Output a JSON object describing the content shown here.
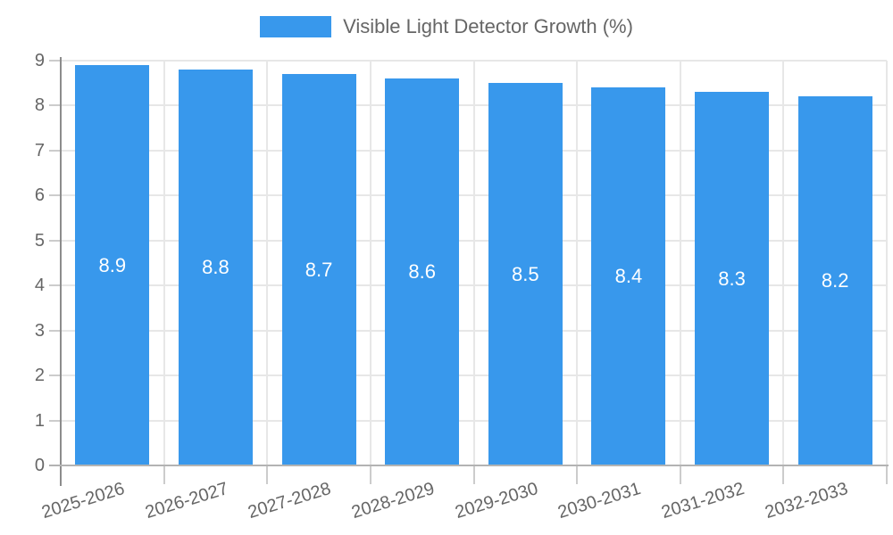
{
  "chart_data": {
    "type": "bar",
    "title": "Visible Light Detector Growth (%)",
    "categories": [
      "2025-2026",
      "2026-2027",
      "2027-2028",
      "2028-2029",
      "2029-2030",
      "2030-2031",
      "2031-2032",
      "2032-2033"
    ],
    "series": [
      {
        "name": "Visible Light Detector Growth (%)",
        "values": [
          8.9,
          8.8,
          8.7,
          8.6,
          8.5,
          8.4,
          8.3,
          8.2
        ],
        "value_labels": [
          "8.9",
          "8.8",
          "8.7",
          "8.6",
          "8.5",
          "8.4",
          "8.3",
          "8.2"
        ],
        "color": "#3898EC"
      }
    ],
    "xlabel": "",
    "ylabel": "",
    "ylim": [
      0,
      9
    ],
    "ytick_labels": [
      "0",
      "1",
      "2",
      "3",
      "4",
      "5",
      "6",
      "7",
      "8",
      "9"
    ],
    "grid": "on",
    "legend_position": "top-center",
    "x_tick_label_rotation_deg": -17,
    "colors": {
      "bar": "#3898EC",
      "bar_label": "#FFFFFF",
      "axis_text": "#666666",
      "legend_text": "#666666",
      "grid_line": "#E7E7E7",
      "axis_line_y": "#8C8C8C",
      "axis_line_x": "#B3B3B3",
      "tick_line": "#CCCCCC",
      "background": "#FFFFFF"
    }
  }
}
